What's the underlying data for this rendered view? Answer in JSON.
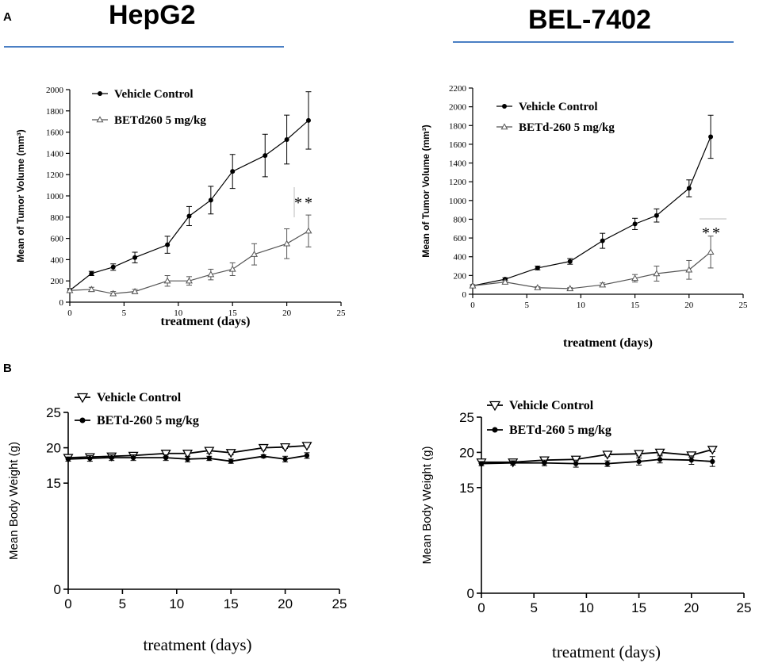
{
  "figure": {
    "panel_a": "A",
    "panel_b": "B",
    "titles": [
      "HepG2",
      "BEL-7402"
    ]
  },
  "colors": {
    "rule": "#4a7fc4",
    "ink": "#000000"
  },
  "chart_data": [
    {
      "id": "a_hepg2",
      "type": "line",
      "title": "HepG2",
      "xlabel": "treatment (days)",
      "ylabel": "Mean of Tumor Volume (mm³)",
      "xlim": [
        0,
        25
      ],
      "ylim": [
        0,
        2000
      ],
      "xticks": [
        0,
        5,
        10,
        15,
        20,
        25
      ],
      "yticks": [
        0,
        200,
        400,
        600,
        800,
        1000,
        1200,
        1400,
        1600,
        1800,
        2000
      ],
      "series": [
        {
          "name": "Vehicle Control",
          "marker": "filled-circle",
          "x": [
            0,
            2,
            4,
            6,
            9,
            11,
            13,
            15,
            18,
            20,
            22
          ],
          "y": [
            110,
            270,
            330,
            420,
            540,
            810,
            960,
            1230,
            1380,
            1530,
            1710
          ],
          "err": [
            20,
            20,
            30,
            50,
            80,
            90,
            130,
            160,
            200,
            230,
            270
          ]
        },
        {
          "name": "BETd260 5 mg/kg",
          "marker": "open-triangle",
          "x": [
            0,
            2,
            4,
            6,
            9,
            11,
            13,
            15,
            17,
            20,
            22
          ],
          "y": [
            110,
            120,
            80,
            100,
            200,
            200,
            260,
            310,
            450,
            550,
            670
          ],
          "err": [
            20,
            20,
            20,
            20,
            50,
            40,
            50,
            60,
            100,
            140,
            150
          ]
        }
      ],
      "annotation": "**"
    },
    {
      "id": "a_bel",
      "type": "line",
      "title": "BEL-7402",
      "xlabel": "treatment (days)",
      "ylabel": "Mean of Tumor Volume (mm³)",
      "xlim": [
        0,
        25
      ],
      "ylim": [
        0,
        2200
      ],
      "xticks": [
        0,
        5,
        10,
        15,
        20,
        25
      ],
      "yticks": [
        0,
        200,
        400,
        600,
        800,
        1000,
        1200,
        1400,
        1600,
        1800,
        2000,
        2200
      ],
      "series": [
        {
          "name": "Vehicle Control",
          "marker": "filled-circle",
          "x": [
            0,
            3,
            6,
            9,
            12,
            15,
            17,
            20,
            22
          ],
          "y": [
            90,
            160,
            280,
            350,
            570,
            750,
            840,
            1130,
            1680
          ],
          "err": [
            10,
            15,
            20,
            30,
            80,
            60,
            70,
            90,
            230
          ]
        },
        {
          "name": "BETd-260  5 mg/kg",
          "marker": "open-triangle",
          "x": [
            0,
            3,
            6,
            9,
            12,
            15,
            17,
            20,
            22
          ],
          "y": [
            90,
            130,
            70,
            60,
            100,
            170,
            220,
            260,
            450
          ],
          "err": [
            10,
            15,
            10,
            10,
            20,
            40,
            80,
            100,
            170
          ]
        }
      ],
      "annotation": "**"
    },
    {
      "id": "b_hepg2",
      "type": "line",
      "title": "",
      "xlabel": "treatment (days)",
      "ylabel": "Mean Body Weight (g)",
      "xlim": [
        0,
        25
      ],
      "ylim": [
        0,
        25
      ],
      "xticks": [
        0,
        5,
        10,
        15,
        20,
        25
      ],
      "yticks": [
        0,
        15,
        20,
        25
      ],
      "series": [
        {
          "name": "Vehicle Control",
          "marker": "open-down-triangle",
          "x": [
            0,
            2,
            4,
            6,
            9,
            11,
            13,
            15,
            18,
            20,
            22
          ],
          "y": [
            18.6,
            18.7,
            18.8,
            18.9,
            19.2,
            19.2,
            19.6,
            19.3,
            20.0,
            20.1,
            20.3
          ],
          "err": [
            0.2,
            0.2,
            0.3,
            0.3,
            0.4,
            0.4,
            0.4,
            0.3,
            0.3,
            0.2,
            0.2
          ]
        },
        {
          "name": "BETd-260  5 mg/kg",
          "marker": "small-dot",
          "x": [
            0,
            2,
            4,
            6,
            9,
            11,
            13,
            15,
            18,
            20,
            22
          ],
          "y": [
            18.4,
            18.5,
            18.6,
            18.6,
            18.6,
            18.4,
            18.5,
            18.1,
            18.8,
            18.4,
            18.9
          ],
          "err": [
            0.3,
            0.4,
            0.4,
            0.4,
            0.4,
            0.4,
            0.3,
            0.3,
            0.2,
            0.4,
            0.4
          ]
        }
      ]
    },
    {
      "id": "b_bel",
      "type": "line",
      "title": "",
      "xlabel": "treatment (days)",
      "ylabel": "Mean Body Weight (g)",
      "xlim": [
        0,
        25
      ],
      "ylim": [
        0,
        25
      ],
      "xticks": [
        0,
        5,
        10,
        15,
        20,
        25
      ],
      "yticks": [
        0,
        15,
        20,
        25
      ],
      "series": [
        {
          "name": "Vehicle Control",
          "marker": "open-down-triangle",
          "x": [
            0,
            3,
            6,
            9,
            12,
            15,
            17,
            20,
            22
          ],
          "y": [
            18.6,
            18.6,
            18.9,
            19.0,
            19.7,
            19.8,
            20.0,
            19.6,
            20.4
          ],
          "err": [
            0.2,
            0.2,
            0.2,
            0.2,
            0.3,
            0.3,
            0.3,
            0.3,
            0.3
          ]
        },
        {
          "name": "BETd-260  5 mg/kg",
          "marker": "small-dot",
          "x": [
            0,
            3,
            6,
            9,
            12,
            15,
            17,
            20,
            22
          ],
          "y": [
            18.4,
            18.5,
            18.5,
            18.4,
            18.4,
            18.7,
            19.0,
            18.9,
            18.7
          ],
          "err": [
            0.3,
            0.3,
            0.4,
            0.5,
            0.4,
            0.5,
            0.5,
            0.6,
            0.7
          ]
        }
      ]
    }
  ]
}
